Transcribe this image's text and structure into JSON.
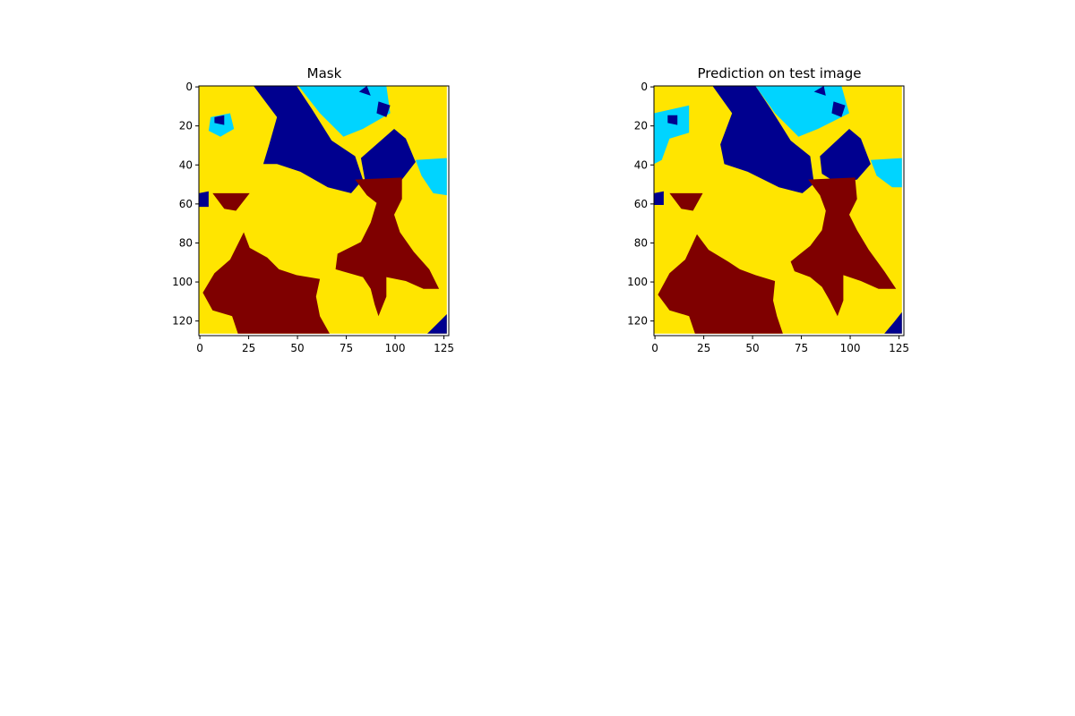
{
  "colors": {
    "dark_blue": "#00008f",
    "light_blue": "#00d4ff",
    "yellow": "#ffe500",
    "dark_red": "#7f0000",
    "background": "#ffffff",
    "axis": "#000000"
  },
  "chart_data": [
    {
      "type": "heatmap",
      "title": "Mask",
      "xlim": [
        0,
        127
      ],
      "ylim": [
        127,
        0
      ],
      "xticks": [
        0,
        25,
        50,
        75,
        100,
        125
      ],
      "yticks": [
        0,
        20,
        40,
        60,
        80,
        100,
        120
      ],
      "grid": false,
      "colormap": "jet",
      "classes": [
        "dark_blue",
        "light_blue",
        "yellow",
        "dark_red"
      ],
      "regions": [
        {
          "class": "yellow",
          "points": [
            [
              0,
              0
            ],
            [
              127,
              0
            ],
            [
              127,
              127
            ],
            [
              0,
              127
            ]
          ]
        },
        {
          "class": "dark_blue",
          "points": [
            [
              28,
              0
            ],
            [
              50,
              0
            ],
            [
              58,
              12
            ],
            [
              68,
              28
            ],
            [
              80,
              36
            ],
            [
              84,
              48
            ],
            [
              78,
              55
            ],
            [
              66,
              52
            ],
            [
              52,
              44
            ],
            [
              40,
              40
            ],
            [
              33,
              40
            ],
            [
              36,
              30
            ],
            [
              40,
              16
            ]
          ]
        },
        {
          "class": "light_blue",
          "points": [
            [
              51,
              0
            ],
            [
              96,
              0
            ],
            [
              98,
              14
            ],
            [
              84,
              22
            ],
            [
              74,
              26
            ],
            [
              62,
              14
            ]
          ]
        },
        {
          "class": "dark_blue",
          "points": [
            [
              82,
              3
            ],
            [
              86,
              0
            ],
            [
              88,
              5
            ]
          ]
        },
        {
          "class": "dark_blue",
          "points": [
            [
              92,
              8
            ],
            [
              98,
              10
            ],
            [
              96,
              16
            ],
            [
              91,
              14
            ]
          ]
        },
        {
          "class": "dark_blue",
          "points": [
            [
              83,
              37
            ],
            [
              100,
              22
            ],
            [
              106,
              27
            ],
            [
              111,
              39
            ],
            [
              104,
              48
            ],
            [
              94,
              50
            ],
            [
              85,
              48
            ]
          ]
        },
        {
          "class": "light_blue",
          "points": [
            [
              111,
              38
            ],
            [
              127,
              37
            ],
            [
              127,
              56
            ],
            [
              120,
              55
            ],
            [
              114,
              46
            ]
          ]
        },
        {
          "class": "light_blue",
          "points": [
            [
              6,
              16
            ],
            [
              16,
              14
            ],
            [
              18,
              22
            ],
            [
              11,
              26
            ],
            [
              5,
              23
            ]
          ]
        },
        {
          "class": "dark_blue",
          "points": [
            [
              8,
              16
            ],
            [
              13,
              15
            ],
            [
              13,
              20
            ],
            [
              8,
              19
            ]
          ]
        },
        {
          "class": "dark_blue",
          "points": [
            [
              0,
              55
            ],
            [
              5,
              54
            ],
            [
              5,
              62
            ],
            [
              0,
              62
            ]
          ]
        },
        {
          "class": "dark_red",
          "points": [
            [
              7,
              55
            ],
            [
              26,
              55
            ],
            [
              19,
              64
            ],
            [
              13,
              63
            ]
          ]
        },
        {
          "class": "dark_red",
          "points": [
            [
              80,
              48
            ],
            [
              104,
              47
            ],
            [
              104,
              58
            ],
            [
              100,
              66
            ],
            [
              103,
              75
            ],
            [
              110,
              85
            ],
            [
              118,
              94
            ],
            [
              123,
              104
            ],
            [
              115,
              104
            ],
            [
              106,
              100
            ],
            [
              96,
              98
            ],
            [
              96,
              108
            ],
            [
              92,
              118
            ],
            [
              90,
              112
            ],
            [
              88,
              104
            ],
            [
              84,
              98
            ],
            [
              77,
              96
            ],
            [
              70,
              94
            ],
            [
              71,
              86
            ],
            [
              83,
              80
            ],
            [
              88,
              70
            ],
            [
              91,
              60
            ],
            [
              86,
              56
            ]
          ]
        },
        {
          "class": "dark_red",
          "points": [
            [
              23,
              75
            ],
            [
              26,
              83
            ],
            [
              35,
              88
            ],
            [
              41,
              94
            ],
            [
              50,
              97
            ],
            [
              62,
              99
            ],
            [
              60,
              108
            ],
            [
              62,
              118
            ],
            [
              67,
              127
            ],
            [
              20,
              127
            ],
            [
              17,
              118
            ],
            [
              7,
              115
            ],
            [
              2,
              106
            ],
            [
              8,
              96
            ],
            [
              16,
              89
            ]
          ]
        },
        {
          "class": "dark_blue",
          "points": [
            [
              127,
              117
            ],
            [
              127,
              127
            ],
            [
              117,
              127
            ],
            [
              123,
              121
            ]
          ]
        }
      ]
    },
    {
      "type": "heatmap",
      "title": "Prediction on test image",
      "xlim": [
        0,
        127
      ],
      "ylim": [
        127,
        0
      ],
      "xticks": [
        0,
        25,
        50,
        75,
        100,
        125
      ],
      "yticks": [
        0,
        20,
        40,
        60,
        80,
        100,
        120
      ],
      "grid": false,
      "colormap": "jet",
      "classes": [
        "dark_blue",
        "light_blue",
        "yellow",
        "dark_red"
      ],
      "regions": [
        {
          "class": "yellow",
          "points": [
            [
              0,
              0
            ],
            [
              127,
              0
            ],
            [
              127,
              127
            ],
            [
              0,
              127
            ]
          ]
        },
        {
          "class": "dark_blue",
          "points": [
            [
              30,
              0
            ],
            [
              52,
              0
            ],
            [
              60,
              12
            ],
            [
              70,
              28
            ],
            [
              80,
              36
            ],
            [
              82,
              50
            ],
            [
              76,
              55
            ],
            [
              64,
              52
            ],
            [
              48,
              44
            ],
            [
              36,
              40
            ],
            [
              34,
              30
            ],
            [
              40,
              14
            ]
          ]
        },
        {
          "class": "light_blue",
          "points": [
            [
              52,
              0
            ],
            [
              96,
              0
            ],
            [
              100,
              14
            ],
            [
              84,
              22
            ],
            [
              74,
              26
            ],
            [
              62,
              14
            ]
          ]
        },
        {
          "class": "dark_blue",
          "points": [
            [
              82,
              3
            ],
            [
              87,
              0
            ],
            [
              88,
              5
            ]
          ]
        },
        {
          "class": "dark_blue",
          "points": [
            [
              92,
              8
            ],
            [
              98,
              10
            ],
            [
              96,
              16
            ],
            [
              91,
              14
            ]
          ]
        },
        {
          "class": "dark_blue",
          "points": [
            [
              85,
              36
            ],
            [
              100,
              22
            ],
            [
              106,
              27
            ],
            [
              111,
              40
            ],
            [
              104,
              48
            ],
            [
              94,
              50
            ],
            [
              86,
              45
            ]
          ]
        },
        {
          "class": "light_blue",
          "points": [
            [
              111,
              38
            ],
            [
              127,
              37
            ],
            [
              127,
              52
            ],
            [
              122,
              52
            ],
            [
              114,
              46
            ]
          ]
        },
        {
          "class": "light_blue",
          "points": [
            [
              0,
              14
            ],
            [
              18,
              10
            ],
            [
              18,
              24
            ],
            [
              8,
              27
            ],
            [
              4,
              38
            ],
            [
              0,
              40
            ]
          ]
        },
        {
          "class": "dark_blue",
          "points": [
            [
              7,
              15
            ],
            [
              12,
              15
            ],
            [
              12,
              20
            ],
            [
              7,
              19
            ]
          ]
        },
        {
          "class": "dark_blue",
          "points": [
            [
              0,
              55
            ],
            [
              5,
              54
            ],
            [
              5,
              61
            ],
            [
              0,
              61
            ]
          ]
        },
        {
          "class": "dark_red",
          "points": [
            [
              8,
              55
            ],
            [
              25,
              55
            ],
            [
              20,
              64
            ],
            [
              14,
              63
            ]
          ]
        },
        {
          "class": "dark_red",
          "points": [
            [
              79,
              48
            ],
            [
              103,
              47
            ],
            [
              104,
              58
            ],
            [
              100,
              66
            ],
            [
              104,
              74
            ],
            [
              110,
              84
            ],
            [
              118,
              95
            ],
            [
              124,
              104
            ],
            [
              115,
              104
            ],
            [
              106,
              100
            ],
            [
              97,
              97
            ],
            [
              97,
              110
            ],
            [
              94,
              118
            ],
            [
              90,
              110
            ],
            [
              86,
              103
            ],
            [
              80,
              98
            ],
            [
              72,
              95
            ],
            [
              70,
              90
            ],
            [
              80,
              82
            ],
            [
              86,
              74
            ],
            [
              88,
              64
            ],
            [
              85,
              56
            ]
          ]
        },
        {
          "class": "dark_red",
          "points": [
            [
              22,
              76
            ],
            [
              28,
              84
            ],
            [
              38,
              90
            ],
            [
              44,
              94
            ],
            [
              52,
              97
            ],
            [
              62,
              100
            ],
            [
              61,
              110
            ],
            [
              63,
              118
            ],
            [
              66,
              127
            ],
            [
              21,
              127
            ],
            [
              18,
              118
            ],
            [
              8,
              115
            ],
            [
              2,
              107
            ],
            [
              8,
              96
            ],
            [
              16,
              89
            ]
          ]
        },
        {
          "class": "dark_blue",
          "points": [
            [
              127,
              116
            ],
            [
              127,
              127
            ],
            [
              118,
              127
            ],
            [
              123,
              121
            ]
          ]
        }
      ]
    }
  ]
}
